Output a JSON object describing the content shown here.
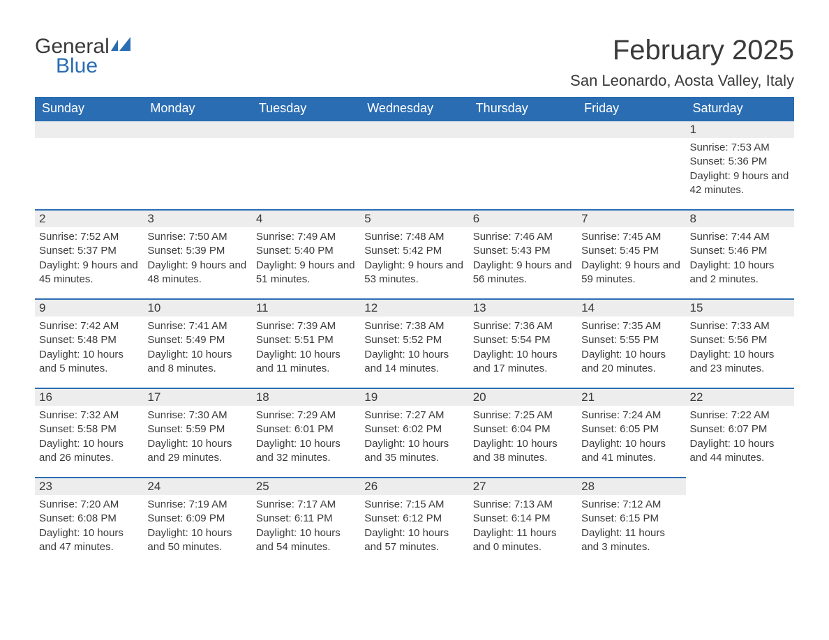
{
  "logo": {
    "line1": "General",
    "line2": "Blue"
  },
  "title": "February 2025",
  "location": "San Leonardo, Aosta Valley, Italy",
  "colors": {
    "header_bg": "#2a6db3",
    "header_fg": "#ffffff",
    "daynum_bg": "#ededed",
    "border_top": "#2a6db3",
    "text": "#3a3a3a",
    "logo_blue": "#2a6db3"
  },
  "weekdays": [
    "Sunday",
    "Monday",
    "Tuesday",
    "Wednesday",
    "Thursday",
    "Friday",
    "Saturday"
  ],
  "weeks": [
    [
      null,
      null,
      null,
      null,
      null,
      null,
      {
        "n": "1",
        "sunrise": "Sunrise: 7:53 AM",
        "sunset": "Sunset: 5:36 PM",
        "daylight": "Daylight: 9 hours and 42 minutes."
      }
    ],
    [
      {
        "n": "2",
        "sunrise": "Sunrise: 7:52 AM",
        "sunset": "Sunset: 5:37 PM",
        "daylight": "Daylight: 9 hours and 45 minutes."
      },
      {
        "n": "3",
        "sunrise": "Sunrise: 7:50 AM",
        "sunset": "Sunset: 5:39 PM",
        "daylight": "Daylight: 9 hours and 48 minutes."
      },
      {
        "n": "4",
        "sunrise": "Sunrise: 7:49 AM",
        "sunset": "Sunset: 5:40 PM",
        "daylight": "Daylight: 9 hours and 51 minutes."
      },
      {
        "n": "5",
        "sunrise": "Sunrise: 7:48 AM",
        "sunset": "Sunset: 5:42 PM",
        "daylight": "Daylight: 9 hours and 53 minutes."
      },
      {
        "n": "6",
        "sunrise": "Sunrise: 7:46 AM",
        "sunset": "Sunset: 5:43 PM",
        "daylight": "Daylight: 9 hours and 56 minutes."
      },
      {
        "n": "7",
        "sunrise": "Sunrise: 7:45 AM",
        "sunset": "Sunset: 5:45 PM",
        "daylight": "Daylight: 9 hours and 59 minutes."
      },
      {
        "n": "8",
        "sunrise": "Sunrise: 7:44 AM",
        "sunset": "Sunset: 5:46 PM",
        "daylight": "Daylight: 10 hours and 2 minutes."
      }
    ],
    [
      {
        "n": "9",
        "sunrise": "Sunrise: 7:42 AM",
        "sunset": "Sunset: 5:48 PM",
        "daylight": "Daylight: 10 hours and 5 minutes."
      },
      {
        "n": "10",
        "sunrise": "Sunrise: 7:41 AM",
        "sunset": "Sunset: 5:49 PM",
        "daylight": "Daylight: 10 hours and 8 minutes."
      },
      {
        "n": "11",
        "sunrise": "Sunrise: 7:39 AM",
        "sunset": "Sunset: 5:51 PM",
        "daylight": "Daylight: 10 hours and 11 minutes."
      },
      {
        "n": "12",
        "sunrise": "Sunrise: 7:38 AM",
        "sunset": "Sunset: 5:52 PM",
        "daylight": "Daylight: 10 hours and 14 minutes."
      },
      {
        "n": "13",
        "sunrise": "Sunrise: 7:36 AM",
        "sunset": "Sunset: 5:54 PM",
        "daylight": "Daylight: 10 hours and 17 minutes."
      },
      {
        "n": "14",
        "sunrise": "Sunrise: 7:35 AM",
        "sunset": "Sunset: 5:55 PM",
        "daylight": "Daylight: 10 hours and 20 minutes."
      },
      {
        "n": "15",
        "sunrise": "Sunrise: 7:33 AM",
        "sunset": "Sunset: 5:56 PM",
        "daylight": "Daylight: 10 hours and 23 minutes."
      }
    ],
    [
      {
        "n": "16",
        "sunrise": "Sunrise: 7:32 AM",
        "sunset": "Sunset: 5:58 PM",
        "daylight": "Daylight: 10 hours and 26 minutes."
      },
      {
        "n": "17",
        "sunrise": "Sunrise: 7:30 AM",
        "sunset": "Sunset: 5:59 PM",
        "daylight": "Daylight: 10 hours and 29 minutes."
      },
      {
        "n": "18",
        "sunrise": "Sunrise: 7:29 AM",
        "sunset": "Sunset: 6:01 PM",
        "daylight": "Daylight: 10 hours and 32 minutes."
      },
      {
        "n": "19",
        "sunrise": "Sunrise: 7:27 AM",
        "sunset": "Sunset: 6:02 PM",
        "daylight": "Daylight: 10 hours and 35 minutes."
      },
      {
        "n": "20",
        "sunrise": "Sunrise: 7:25 AM",
        "sunset": "Sunset: 6:04 PM",
        "daylight": "Daylight: 10 hours and 38 minutes."
      },
      {
        "n": "21",
        "sunrise": "Sunrise: 7:24 AM",
        "sunset": "Sunset: 6:05 PM",
        "daylight": "Daylight: 10 hours and 41 minutes."
      },
      {
        "n": "22",
        "sunrise": "Sunrise: 7:22 AM",
        "sunset": "Sunset: 6:07 PM",
        "daylight": "Daylight: 10 hours and 44 minutes."
      }
    ],
    [
      {
        "n": "23",
        "sunrise": "Sunrise: 7:20 AM",
        "sunset": "Sunset: 6:08 PM",
        "daylight": "Daylight: 10 hours and 47 minutes."
      },
      {
        "n": "24",
        "sunrise": "Sunrise: 7:19 AM",
        "sunset": "Sunset: 6:09 PM",
        "daylight": "Daylight: 10 hours and 50 minutes."
      },
      {
        "n": "25",
        "sunrise": "Sunrise: 7:17 AM",
        "sunset": "Sunset: 6:11 PM",
        "daylight": "Daylight: 10 hours and 54 minutes."
      },
      {
        "n": "26",
        "sunrise": "Sunrise: 7:15 AM",
        "sunset": "Sunset: 6:12 PM",
        "daylight": "Daylight: 10 hours and 57 minutes."
      },
      {
        "n": "27",
        "sunrise": "Sunrise: 7:13 AM",
        "sunset": "Sunset: 6:14 PM",
        "daylight": "Daylight: 11 hours and 0 minutes."
      },
      {
        "n": "28",
        "sunrise": "Sunrise: 7:12 AM",
        "sunset": "Sunset: 6:15 PM",
        "daylight": "Daylight: 11 hours and 3 minutes."
      },
      null
    ]
  ]
}
